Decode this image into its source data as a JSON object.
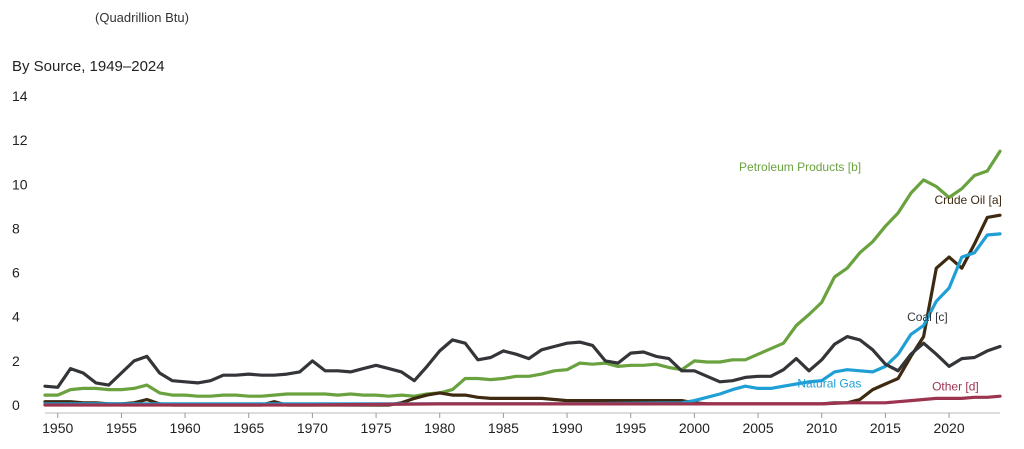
{
  "unit_label": "(Quadrillion Btu)",
  "title": "By Source, 1949–2024",
  "colors": {
    "petroleum": "#6aa23f",
    "crude": "#3d2a10",
    "natgas": "#1f9fd6",
    "coal": "#333538",
    "other": "#9c3450"
  },
  "chart_data": {
    "type": "line",
    "title": "By Source, 1949–2024",
    "xlabel": "",
    "ylabel": "(Quadrillion Btu)",
    "xlim": [
      1949,
      2024
    ],
    "ylim": [
      0,
      14
    ],
    "x_ticks": [
      1950,
      1955,
      1960,
      1965,
      1970,
      1975,
      1980,
      1985,
      1990,
      1995,
      2000,
      2005,
      2010,
      2015,
      2020
    ],
    "y_ticks": [
      0,
      2,
      4,
      6,
      8,
      10,
      12,
      14
    ],
    "grid": false,
    "legend": "inline labels",
    "series": [
      {
        "name": "Petroleum Products [b]",
        "color": "#6aa23f",
        "points": [
          [
            1949,
            0.45
          ],
          [
            1950,
            0.45
          ],
          [
            1951,
            0.7
          ],
          [
            1952,
            0.75
          ],
          [
            1953,
            0.75
          ],
          [
            1954,
            0.7
          ],
          [
            1955,
            0.7
          ],
          [
            1956,
            0.75
          ],
          [
            1957,
            0.9
          ],
          [
            1958,
            0.55
          ],
          [
            1959,
            0.45
          ],
          [
            1960,
            0.45
          ],
          [
            1961,
            0.4
          ],
          [
            1962,
            0.4
          ],
          [
            1963,
            0.45
          ],
          [
            1964,
            0.45
          ],
          [
            1965,
            0.4
          ],
          [
            1966,
            0.4
          ],
          [
            1967,
            0.45
          ],
          [
            1968,
            0.5
          ],
          [
            1969,
            0.5
          ],
          [
            1970,
            0.5
          ],
          [
            1971,
            0.5
          ],
          [
            1972,
            0.45
          ],
          [
            1973,
            0.5
          ],
          [
            1974,
            0.45
          ],
          [
            1975,
            0.45
          ],
          [
            1976,
            0.4
          ],
          [
            1977,
            0.45
          ],
          [
            1978,
            0.4
          ],
          [
            1979,
            0.5
          ],
          [
            1980,
            0.55
          ],
          [
            1981,
            0.7
          ],
          [
            1982,
            1.2
          ],
          [
            1983,
            1.2
          ],
          [
            1984,
            1.15
          ],
          [
            1985,
            1.2
          ],
          [
            1986,
            1.3
          ],
          [
            1987,
            1.3
          ],
          [
            1988,
            1.4
          ],
          [
            1989,
            1.55
          ],
          [
            1990,
            1.6
          ],
          [
            1991,
            1.9
          ],
          [
            1992,
            1.85
          ],
          [
            1993,
            1.9
          ],
          [
            1994,
            1.75
          ],
          [
            1995,
            1.8
          ],
          [
            1996,
            1.8
          ],
          [
            1997,
            1.85
          ],
          [
            1998,
            1.7
          ],
          [
            1999,
            1.6
          ],
          [
            2000,
            2.0
          ],
          [
            2001,
            1.95
          ],
          [
            2002,
            1.95
          ],
          [
            2003,
            2.05
          ],
          [
            2004,
            2.05
          ],
          [
            2005,
            2.3
          ],
          [
            2006,
            2.55
          ],
          [
            2007,
            2.8
          ],
          [
            2008,
            3.6
          ],
          [
            2009,
            4.1
          ],
          [
            2010,
            4.65
          ],
          [
            2011,
            5.8
          ],
          [
            2012,
            6.2
          ],
          [
            2013,
            6.9
          ],
          [
            2014,
            7.4
          ],
          [
            2015,
            8.1
          ],
          [
            2016,
            8.7
          ],
          [
            2017,
            9.6
          ],
          [
            2018,
            10.2
          ],
          [
            2019,
            9.9
          ],
          [
            2020,
            9.4
          ],
          [
            2021,
            9.8
          ],
          [
            2022,
            10.4
          ],
          [
            2023,
            10.6
          ],
          [
            2024,
            11.5
          ]
        ]
      },
      {
        "name": "Crude Oil [a]",
        "color": "#3d2a10",
        "points": [
          [
            1949,
            0.15
          ],
          [
            1950,
            0.15
          ],
          [
            1951,
            0.15
          ],
          [
            1952,
            0.1
          ],
          [
            1953,
            0.1
          ],
          [
            1954,
            0.05
          ],
          [
            1955,
            0.05
          ],
          [
            1956,
            0.1
          ],
          [
            1957,
            0.25
          ],
          [
            1958,
            0.05
          ],
          [
            1959,
            0.0
          ],
          [
            1960,
            0.0
          ],
          [
            1961,
            0.0
          ],
          [
            1962,
            0.0
          ],
          [
            1963,
            0.0
          ],
          [
            1964,
            0.0
          ],
          [
            1965,
            0.0
          ],
          [
            1966,
            0.0
          ],
          [
            1967,
            0.15
          ],
          [
            1968,
            0.0
          ],
          [
            1969,
            0.0
          ],
          [
            1970,
            0.0
          ],
          [
            1971,
            0.0
          ],
          [
            1972,
            0.0
          ],
          [
            1973,
            0.0
          ],
          [
            1974,
            0.0
          ],
          [
            1975,
            0.0
          ],
          [
            1976,
            0.0
          ],
          [
            1977,
            0.1
          ],
          [
            1978,
            0.3
          ],
          [
            1979,
            0.45
          ],
          [
            1980,
            0.55
          ],
          [
            1981,
            0.45
          ],
          [
            1982,
            0.45
          ],
          [
            1983,
            0.35
          ],
          [
            1984,
            0.3
          ],
          [
            1985,
            0.3
          ],
          [
            1986,
            0.3
          ],
          [
            1987,
            0.3
          ],
          [
            1988,
            0.3
          ],
          [
            1989,
            0.25
          ],
          [
            1990,
            0.2
          ],
          [
            1991,
            0.2
          ],
          [
            1992,
            0.2
          ],
          [
            1993,
            0.2
          ],
          [
            1994,
            0.2
          ],
          [
            1995,
            0.2
          ],
          [
            1996,
            0.2
          ],
          [
            1997,
            0.2
          ],
          [
            1998,
            0.2
          ],
          [
            1999,
            0.2
          ],
          [
            2000,
            0.1
          ],
          [
            2001,
            0.05
          ],
          [
            2002,
            0.05
          ],
          [
            2003,
            0.05
          ],
          [
            2004,
            0.05
          ],
          [
            2005,
            0.05
          ],
          [
            2006,
            0.05
          ],
          [
            2007,
            0.05
          ],
          [
            2008,
            0.05
          ],
          [
            2009,
            0.05
          ],
          [
            2010,
            0.05
          ],
          [
            2011,
            0.1
          ],
          [
            2012,
            0.1
          ],
          [
            2013,
            0.25
          ],
          [
            2014,
            0.7
          ],
          [
            2015,
            0.95
          ],
          [
            2016,
            1.2
          ],
          [
            2017,
            2.2
          ],
          [
            2018,
            3.1
          ],
          [
            2019,
            6.2
          ],
          [
            2020,
            6.7
          ],
          [
            2021,
            6.2
          ],
          [
            2022,
            7.3
          ],
          [
            2023,
            8.5
          ],
          [
            2024,
            8.6
          ]
        ]
      },
      {
        "name": "Natural Gas",
        "color": "#1f9fd6",
        "points": [
          [
            1949,
            0.05
          ],
          [
            1960,
            0.05
          ],
          [
            1970,
            0.05
          ],
          [
            1980,
            0.05
          ],
          [
            1990,
            0.05
          ],
          [
            1999,
            0.1
          ],
          [
            2000,
            0.2
          ],
          [
            2001,
            0.35
          ],
          [
            2002,
            0.5
          ],
          [
            2003,
            0.7
          ],
          [
            2004,
            0.85
          ],
          [
            2005,
            0.75
          ],
          [
            2006,
            0.75
          ],
          [
            2007,
            0.85
          ],
          [
            2008,
            0.95
          ],
          [
            2009,
            1.05
          ],
          [
            2010,
            1.1
          ],
          [
            2011,
            1.5
          ],
          [
            2012,
            1.6
          ],
          [
            2013,
            1.55
          ],
          [
            2014,
            1.5
          ],
          [
            2015,
            1.75
          ],
          [
            2016,
            2.3
          ],
          [
            2017,
            3.2
          ],
          [
            2018,
            3.6
          ],
          [
            2019,
            4.7
          ],
          [
            2020,
            5.3
          ],
          [
            2021,
            6.7
          ],
          [
            2022,
            6.9
          ],
          [
            2023,
            7.7
          ],
          [
            2024,
            7.75
          ]
        ]
      },
      {
        "name": "Coal [c]",
        "color": "#333538",
        "points": [
          [
            1949,
            0.85
          ],
          [
            1950,
            0.8
          ],
          [
            1951,
            1.65
          ],
          [
            1952,
            1.45
          ],
          [
            1953,
            1.0
          ],
          [
            1954,
            0.9
          ],
          [
            1955,
            1.45
          ],
          [
            1956,
            2.0
          ],
          [
            1957,
            2.2
          ],
          [
            1958,
            1.45
          ],
          [
            1959,
            1.1
          ],
          [
            1960,
            1.05
          ],
          [
            1961,
            1.0
          ],
          [
            1962,
            1.1
          ],
          [
            1963,
            1.35
          ],
          [
            1964,
            1.35
          ],
          [
            1965,
            1.4
          ],
          [
            1966,
            1.35
          ],
          [
            1967,
            1.35
          ],
          [
            1968,
            1.4
          ],
          [
            1969,
            1.5
          ],
          [
            1970,
            2.0
          ],
          [
            1971,
            1.55
          ],
          [
            1972,
            1.55
          ],
          [
            1973,
            1.5
          ],
          [
            1974,
            1.65
          ],
          [
            1975,
            1.8
          ],
          [
            1976,
            1.65
          ],
          [
            1977,
            1.5
          ],
          [
            1978,
            1.1
          ],
          [
            1979,
            1.75
          ],
          [
            1980,
            2.45
          ],
          [
            1981,
            2.95
          ],
          [
            1982,
            2.8
          ],
          [
            1983,
            2.05
          ],
          [
            1984,
            2.15
          ],
          [
            1985,
            2.45
          ],
          [
            1986,
            2.3
          ],
          [
            1987,
            2.1
          ],
          [
            1988,
            2.5
          ],
          [
            1989,
            2.65
          ],
          [
            1990,
            2.8
          ],
          [
            1991,
            2.85
          ],
          [
            1992,
            2.7
          ],
          [
            1993,
            2.0
          ],
          [
            1994,
            1.9
          ],
          [
            1995,
            2.35
          ],
          [
            1996,
            2.4
          ],
          [
            1997,
            2.2
          ],
          [
            1998,
            2.1
          ],
          [
            1999,
            1.55
          ],
          [
            2000,
            1.55
          ],
          [
            2001,
            1.3
          ],
          [
            2002,
            1.05
          ],
          [
            2003,
            1.1
          ],
          [
            2004,
            1.25
          ],
          [
            2005,
            1.3
          ],
          [
            2006,
            1.3
          ],
          [
            2007,
            1.6
          ],
          [
            2008,
            2.1
          ],
          [
            2009,
            1.55
          ],
          [
            2010,
            2.05
          ],
          [
            2011,
            2.75
          ],
          [
            2012,
            3.1
          ],
          [
            2013,
            2.95
          ],
          [
            2014,
            2.5
          ],
          [
            2015,
            1.85
          ],
          [
            2016,
            1.55
          ],
          [
            2017,
            2.3
          ],
          [
            2018,
            2.8
          ],
          [
            2019,
            2.3
          ],
          [
            2020,
            1.75
          ],
          [
            2021,
            2.1
          ],
          [
            2022,
            2.15
          ],
          [
            2023,
            2.45
          ],
          [
            2024,
            2.65
          ]
        ]
      },
      {
        "name": "Other [d]",
        "color": "#9c3450",
        "points": [
          [
            1949,
            0.0
          ],
          [
            1960,
            0.0
          ],
          [
            1970,
            0.0
          ],
          [
            1980,
            0.05
          ],
          [
            1990,
            0.05
          ],
          [
            2000,
            0.05
          ],
          [
            2005,
            0.05
          ],
          [
            2010,
            0.05
          ],
          [
            2012,
            0.1
          ],
          [
            2015,
            0.1
          ],
          [
            2016,
            0.15
          ],
          [
            2017,
            0.2
          ],
          [
            2018,
            0.25
          ],
          [
            2019,
            0.3
          ],
          [
            2020,
            0.3
          ],
          [
            2021,
            0.3
          ],
          [
            2022,
            0.35
          ],
          [
            2023,
            0.35
          ],
          [
            2024,
            0.4
          ]
        ]
      }
    ],
    "series_labels": [
      {
        "series": "Petroleum Products [b]",
        "text": "Petroleum Products [b]",
        "at": [
          2008.3,
          10.6
        ],
        "anchor": "middle",
        "color": "#6aa23f"
      },
      {
        "series": "Crude Oil [a]",
        "text": "Crude Oil [a]",
        "at": [
          2021.5,
          9.1
        ],
        "anchor": "middle",
        "color": "#3d2a10"
      },
      {
        "series": "Natural Gas",
        "text": "Natural Gas",
        "at": [
          2010.6,
          0.8
        ],
        "anchor": "middle",
        "color": "#1f9fd6"
      },
      {
        "series": "Coal [c]",
        "text": "Coal [c]",
        "at": [
          2018.3,
          3.8
        ],
        "anchor": "middle",
        "color": "#333538"
      },
      {
        "series": "Other [d]",
        "text": "Other [d]",
        "at": [
          2020.5,
          0.65
        ],
        "anchor": "middle",
        "color": "#9c3450"
      }
    ]
  }
}
